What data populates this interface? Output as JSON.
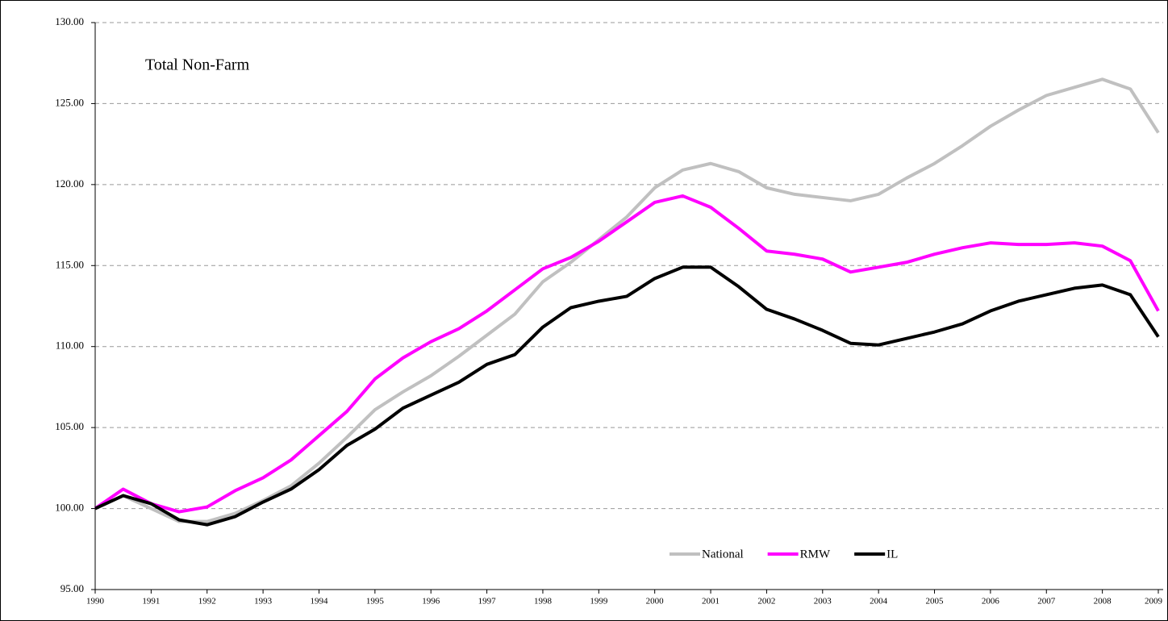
{
  "chart_data": {
    "type": "line",
    "annotation": "Total Non-Farm",
    "x": [
      1990,
      1990.5,
      1991,
      1991.5,
      1992,
      1992.5,
      1993,
      1993.5,
      1994,
      1994.5,
      1995,
      1995.5,
      1996,
      1996.5,
      1997,
      1997.5,
      1998,
      1998.5,
      1999,
      1999.5,
      2000,
      2000.5,
      2001,
      2001.5,
      2002,
      2002.5,
      2003,
      2003.5,
      2004,
      2004.5,
      2005,
      2005.5,
      2006,
      2006.5,
      2007,
      2007.5,
      2008,
      2008.5,
      2009
    ],
    "series": [
      {
        "name": "National",
        "color": "#c0c0c0",
        "values": [
          100,
          100.8,
          100.0,
          99.2,
          99.2,
          99.7,
          100.5,
          101.4,
          102.8,
          104.4,
          106.1,
          107.2,
          108.2,
          109.4,
          110.7,
          112.0,
          114.0,
          115.2,
          116.6,
          118.0,
          119.8,
          120.9,
          121.3,
          120.8,
          119.8,
          119.4,
          119.2,
          119.0,
          119.4,
          120.4,
          121.3,
          122.4,
          123.6,
          124.6,
          125.5,
          126.0,
          126.5,
          125.9,
          123.2
        ]
      },
      {
        "name": "RMW",
        "color": "#ff00ff",
        "values": [
          100,
          101.2,
          100.3,
          99.8,
          100.1,
          101.1,
          101.9,
          103.0,
          104.5,
          106.0,
          108.0,
          109.3,
          110.3,
          111.1,
          112.2,
          113.5,
          114.8,
          115.5,
          116.5,
          117.7,
          118.9,
          119.3,
          118.6,
          117.3,
          115.9,
          115.7,
          115.4,
          114.6,
          114.9,
          115.2,
          115.7,
          116.1,
          116.4,
          116.3,
          116.3,
          116.4,
          116.2,
          115.3,
          112.2
        ]
      },
      {
        "name": "IL",
        "color": "#000000",
        "values": [
          100,
          100.8,
          100.3,
          99.3,
          99.0,
          99.5,
          100.4,
          101.2,
          102.4,
          103.9,
          104.9,
          106.2,
          107.0,
          107.8,
          108.9,
          109.5,
          111.2,
          112.4,
          112.8,
          113.1,
          114.2,
          114.9,
          114.9,
          113.7,
          112.3,
          111.7,
          111.0,
          110.2,
          110.1,
          110.5,
          110.9,
          111.4,
          112.2,
          112.8,
          113.2,
          113.6,
          113.8,
          113.2,
          110.6
        ]
      }
    ],
    "xlim": [
      1990,
      2009
    ],
    "xticks": [
      1990,
      1991,
      1992,
      1993,
      1994,
      1995,
      1996,
      1997,
      1998,
      1999,
      2000,
      2001,
      2002,
      2003,
      2004,
      2005,
      2006,
      2007,
      2008,
      2009
    ],
    "ylim": [
      95,
      130
    ],
    "yticks": [
      {
        "value": 95,
        "label": "95.00"
      },
      {
        "value": 100,
        "label": "100.00"
      },
      {
        "value": 105,
        "label": "105.00"
      },
      {
        "value": 110,
        "label": "110.00"
      },
      {
        "value": 115,
        "label": "115.00"
      },
      {
        "value": 120,
        "label": "120.00"
      },
      {
        "value": 125,
        "label": "125.00"
      },
      {
        "value": 130,
        "label": "130.00"
      }
    ],
    "grid": true,
    "legend": "bottom-right"
  }
}
